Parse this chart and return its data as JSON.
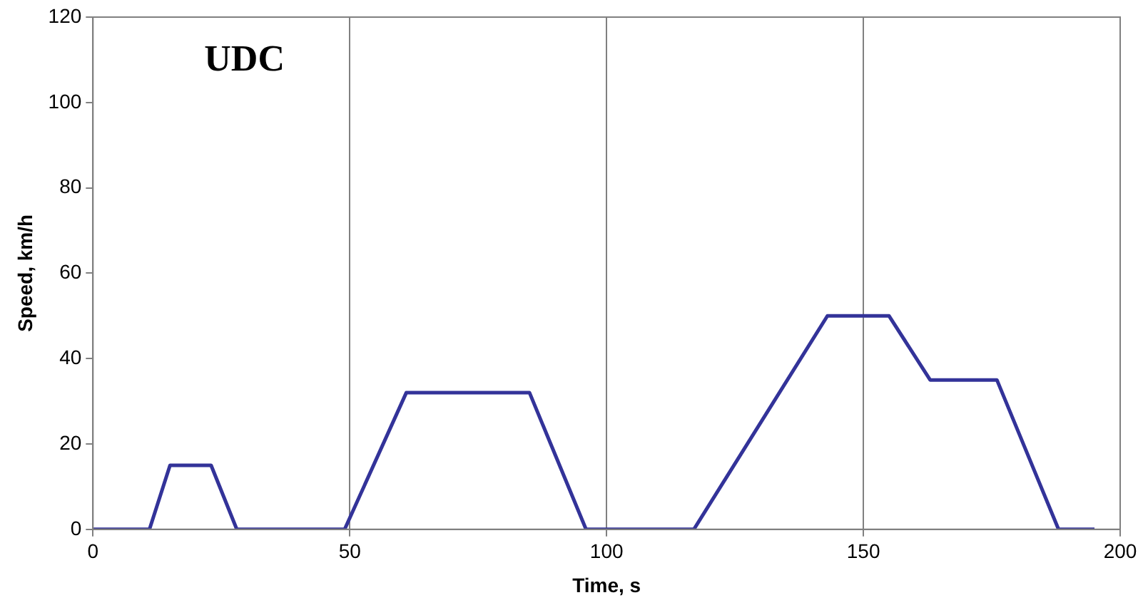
{
  "chart_data": {
    "type": "line",
    "title": "UDC",
    "xlabel": "Time, s",
    "ylabel": "Speed, km/h",
    "series": [
      {
        "color": "#333399",
        "x": [
          0,
          11,
          15,
          23,
          28,
          49,
          61,
          85,
          96,
          117,
          143,
          155,
          163,
          176,
          188,
          195
        ],
        "values": [
          0,
          0,
          15,
          15,
          0,
          0,
          32,
          32,
          0,
          0,
          50,
          50,
          35,
          35,
          0,
          0
        ]
      }
    ],
    "xlim": [
      0,
      200
    ],
    "xticks": [
      0,
      50,
      100,
      150,
      200
    ],
    "ylim": [
      0,
      120
    ],
    "yticks": [
      0,
      20,
      40,
      60,
      80,
      100,
      120
    ],
    "grid": "x",
    "legend": false,
    "marker": "none",
    "line_style": "solid"
  }
}
